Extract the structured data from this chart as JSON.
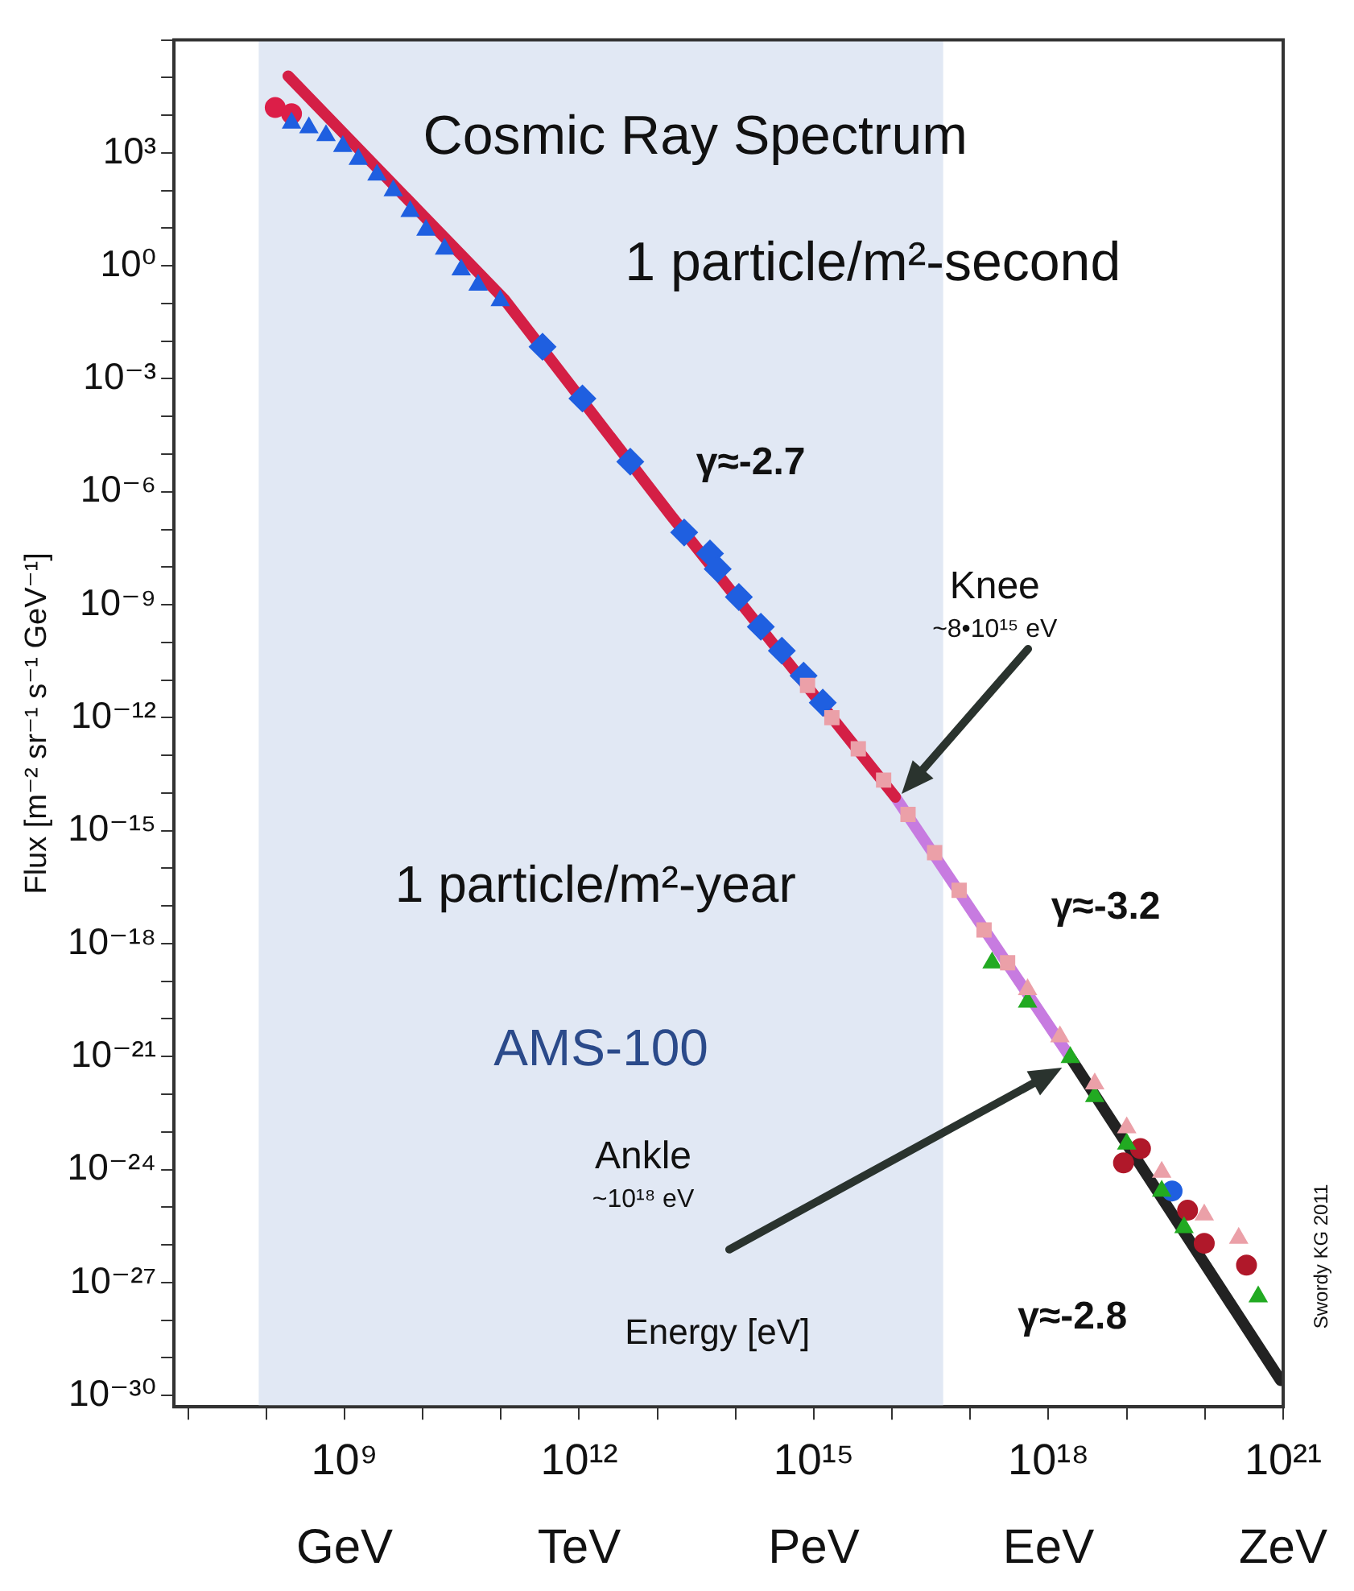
{
  "chart_data": {
    "type": "scatter",
    "title": "Cosmic Ray Spectrum",
    "xlabel": "Energy [eV]",
    "ylabel": "Flux [m⁻² sr⁻¹ s⁻¹ GeV⁻¹]",
    "log": "xy",
    "grid": false,
    "legend": false,
    "xlim": [
      6600000.0,
      1e+21
    ],
    "ylim": [
      5e-31,
      1000000.0
    ],
    "xticks": [
      {
        "value": 10000000.0,
        "label": null
      },
      {
        "value": 100000000.0,
        "label": null
      },
      {
        "value": 1000000000.0,
        "label": "10⁹"
      },
      {
        "value": 10000000000.0,
        "label": null
      },
      {
        "value": 100000000000.0,
        "label": null
      },
      {
        "value": 1000000000000.0,
        "label": "10¹²"
      },
      {
        "value": 10000000000000.0,
        "label": null
      },
      {
        "value": 100000000000000.0,
        "label": null
      },
      {
        "value": 1000000000000000.0,
        "label": "10¹⁵"
      },
      {
        "value": 1e+16,
        "label": null
      },
      {
        "value": 1e+17,
        "label": null
      },
      {
        "value": 1e+18,
        "label": "10¹⁸"
      },
      {
        "value": 1e+19,
        "label": null
      },
      {
        "value": 1e+20,
        "label": null
      },
      {
        "value": 1e+21,
        "label": "10²¹"
      }
    ],
    "yticks": [
      {
        "value": 1e-30,
        "label": "10⁻³⁰"
      },
      {
        "value": 1e-29,
        "label": null
      },
      {
        "value": 1e-28,
        "label": null
      },
      {
        "value": 1e-27,
        "label": "10⁻²⁷"
      },
      {
        "value": 1e-26,
        "label": null
      },
      {
        "value": 1e-25,
        "label": null
      },
      {
        "value": 1e-24,
        "label": "10⁻²⁴"
      },
      {
        "value": 1e-23,
        "label": null
      },
      {
        "value": 1e-22,
        "label": null
      },
      {
        "value": 1e-21,
        "label": "10⁻²¹"
      },
      {
        "value": 1e-20,
        "label": null
      },
      {
        "value": 1e-19,
        "label": null
      },
      {
        "value": 1e-18,
        "label": "10⁻¹⁸"
      },
      {
        "value": 1e-17,
        "label": null
      },
      {
        "value": 1e-16,
        "label": null
      },
      {
        "value": 1e-15,
        "label": "10⁻¹⁵"
      },
      {
        "value": 1e-14,
        "label": null
      },
      {
        "value": 1e-13,
        "label": null
      },
      {
        "value": 1e-12,
        "label": "10⁻¹²"
      },
      {
        "value": 1e-11,
        "label": null
      },
      {
        "value": 1e-10,
        "label": null
      },
      {
        "value": 1e-09,
        "label": "10⁻⁹"
      },
      {
        "value": 1e-08,
        "label": null
      },
      {
        "value": 1e-07,
        "label": null
      },
      {
        "value": 1e-06,
        "label": "10⁻⁶"
      },
      {
        "value": 1e-05,
        "label": null
      },
      {
        "value": 0.0001,
        "label": null
      },
      {
        "value": 0.001,
        "label": "10⁻³"
      },
      {
        "value": 0.01,
        "label": null
      },
      {
        "value": 0.1,
        "label": null
      },
      {
        "value": 1,
        "label": "10⁰"
      },
      {
        "value": 10,
        "label": null
      },
      {
        "value": 100,
        "label": null
      },
      {
        "value": 1000,
        "label": "10³"
      },
      {
        "value": 10000.0,
        "label": null
      },
      {
        "value": 100000.0,
        "label": null
      },
      {
        "value": 1000000.0,
        "label": null
      }
    ],
    "bands": [
      {
        "axis": "x",
        "from": 80000000.0,
        "to": 4.5e+16,
        "label": "AMS-100",
        "color": "#e1e8f4"
      }
    ],
    "series": [
      {
        "type": "line",
        "marker": "none",
        "color": "#d41f45",
        "x": [
          190000000.0,
          110000000000.0,
          15000000000000.0,
          1.1e+16
        ],
        "values": [
          110000.0,
          0.13,
          2.3e-07,
          7.8e-15
        ]
      },
      {
        "type": "line",
        "marker": "none",
        "color": "#c77be0",
        "x": [
          1.1e+16,
          1.9e+18
        ],
        "values": [
          7.8e-15,
          9.5e-22
        ]
      },
      {
        "type": "line",
        "marker": "none",
        "color": "#222222",
        "x": [
          1.9e+18,
          9.3e+20
        ],
        "values": [
          9.5e-22,
          2.5e-30
        ]
      },
      {
        "type": "scatter",
        "marker": "square",
        "color": "#eba0a8",
        "x": [
          830000000000000.0,
          1700000000000000.0,
          3700000000000000.0,
          7800000000000000.0,
          1.6e+16,
          3.5e+16,
          7.2e+16,
          1.5e+17,
          3e+17
        ],
        "values": [
          7.2e-12,
          1e-12,
          1.5e-13,
          2.2e-14,
          2.7e-15,
          2.6e-16,
          2.6e-17,
          2.3e-18,
          3.1e-19
        ]
      },
      {
        "type": "scatter",
        "marker": "triangle",
        "color": "#eba0a8",
        "x": [
          5.4e+17,
          1.4e+18,
          3.9e+18,
          1e+19,
          2.8e+19,
          9.8e+19,
          2.7e+20
        ],
        "values": [
          6e-20,
          3.4e-21,
          1.9e-22,
          1.3e-23,
          8.5e-25,
          6.3e-26,
          1.5e-26
        ]
      },
      {
        "type": "scatter",
        "marker": "triangle",
        "color": "#1f5fe0",
        "x": [
          210000000.0,
          350000000.0,
          580000000.0,
          950000000.0,
          1500000000.0,
          2600000000.0,
          4200000000.0,
          6900000000.0,
          11000000000.0,
          19000000000.0,
          31000000000.0,
          51000000000.0,
          98000000000.0
        ],
        "values": [
          6200.0,
          4700.0,
          2900.0,
          1500.0,
          680,
          260,
          100,
          28,
          8.9,
          2.8,
          0.79,
          0.31,
          0.12
        ]
      },
      {
        "type": "scatter",
        "marker": "circle",
        "color": "#dc1e48",
        "x": [
          130000000.0,
          210000000.0
        ],
        "values": [
          16000.0,
          11000.0
        ]
      },
      {
        "type": "scatter",
        "marker": "diamond",
        "color": "#1f5fe0",
        "x": [
          340000000000.0,
          1100000000000.0,
          4500000000000.0,
          22000000000000.0,
          47000000000000.0,
          59000000000000.0,
          110000000000000.0,
          210000000000000.0,
          390000000000000.0,
          740000000000000.0,
          1300000000000000.0
        ],
        "values": [
          0.0071,
          0.0003,
          6.3e-06,
          8.3e-08,
          2.3e-08,
          8.9e-09,
          1.6e-09,
          2.6e-10,
          6e-11,
          1.3e-11,
          2.5e-12
        ]
      },
      {
        "type": "scatter",
        "marker": "triangle",
        "color": "#22aa22",
        "x": [
          1.9e+17,
          5.4e+17,
          1.9e+18,
          3.9e+18,
          1e+19,
          2.8e+19,
          5.4e+19,
          4.8e+20
        ],
        "values": [
          3.1e-19,
          2.8e-20,
          9.5e-22,
          8.7e-23,
          4.8e-24,
          2.7e-25,
          2.9e-26,
          4.2e-28
        ]
      },
      {
        "type": "scatter",
        "marker": "circle",
        "color": "#b0182a",
        "x": [
          9.1e+18,
          1.5e+19,
          6e+19,
          9.8e+19,
          3.4e+20
        ],
        "values": [
          1.5e-24,
          3.6e-24,
          8.3e-26,
          1.1e-26,
          2.9e-27
        ]
      },
      {
        "type": "scatter",
        "marker": "circle",
        "color": "#1f5fe0",
        "x": [
          3.8e+19
        ],
        "values": [
          2.7e-25
        ]
      }
    ],
    "annotations": [
      "1 particle/m²-second",
      "γ≈-2.7",
      "1 particle/m²-year",
      "γ≈-3.2",
      "γ≈-2.8",
      "Swordy KG 2011",
      "Knee\n~8•10¹⁵ eV",
      "Ankle\n~10¹⁸ eV",
      "GeV",
      "TeV",
      "PeV",
      "EeV",
      "ZeV"
    ]
  }
}
